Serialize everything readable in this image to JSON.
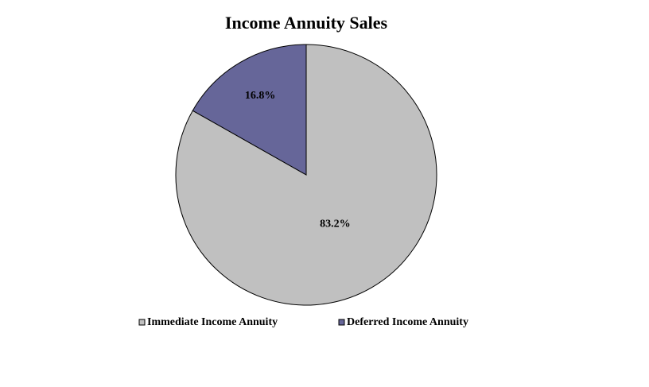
{
  "chart_data": {
    "type": "pie",
    "title": "Income Annuity Sales",
    "categories": [
      "Immediate Income Annuity",
      "Deferred Income Annuity"
    ],
    "values": [
      83.2,
      16.8
    ],
    "value_labels": [
      "83.2%",
      "16.8%"
    ],
    "colors": [
      "#c0c0c0",
      "#666699"
    ],
    "legend": "bottom"
  }
}
